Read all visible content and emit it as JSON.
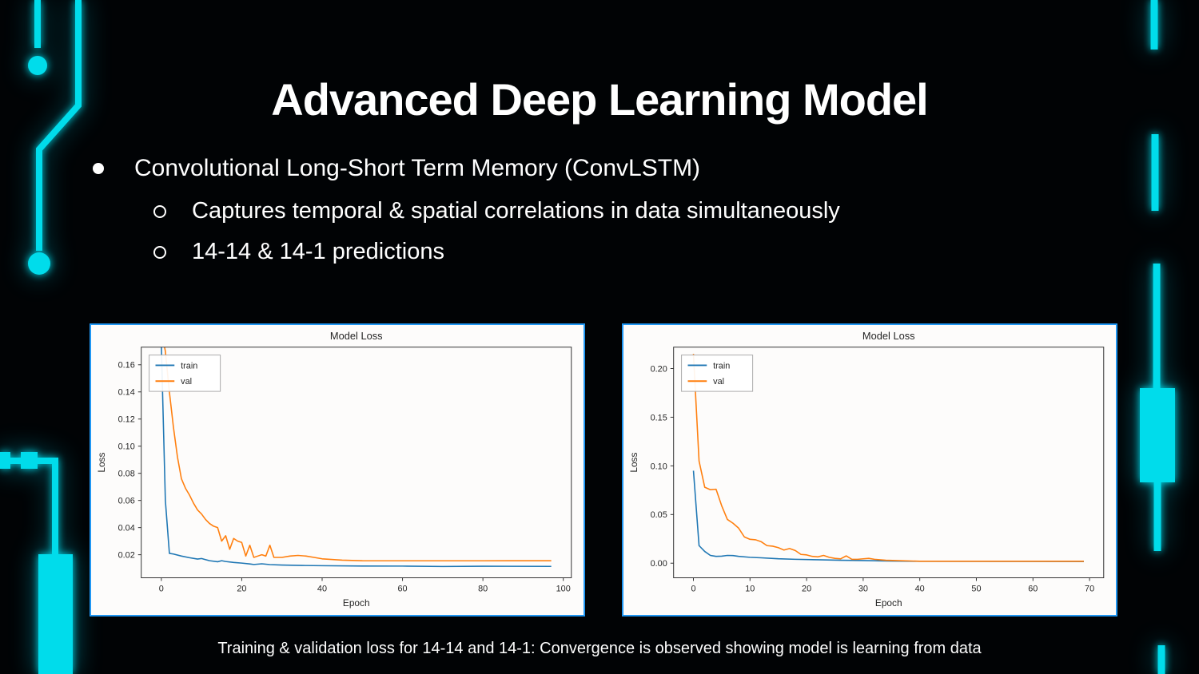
{
  "slide": {
    "title": "Advanced Deep Learning Model",
    "bullets": {
      "level1": "Convolutional Long-Short Term Memory (ConvLSTM)",
      "sub1": "Captures temporal & spatial correlations in data simultaneously",
      "sub2": "14-14 & 14-1 predictions"
    },
    "caption": "Training & validation loss for 14-14 and 14-1: Convergence is observed showing model is learning from data"
  },
  "colors": {
    "background": "#010305",
    "accent_cyan": "#00dceb",
    "panel_border": "#2097f3",
    "train_line": "#1f77b4",
    "val_line": "#ff7f0e",
    "chart_text": "#262626"
  },
  "chart_data": [
    {
      "type": "line",
      "name": "loss-14-14",
      "title": "Model Loss",
      "xlabel": "Epoch",
      "ylabel": "Loss",
      "xlim": [
        -5,
        102
      ],
      "ylim": [
        0.003,
        0.173
      ],
      "xticks": [
        0,
        20,
        40,
        60,
        80,
        100
      ],
      "yticks": [
        0.02,
        0.04,
        0.06,
        0.08,
        0.1,
        0.12,
        0.14,
        0.16
      ],
      "ytick_labels": [
        "0.02",
        "0.04",
        "0.06",
        "0.08",
        "0.10",
        "0.12",
        "0.14",
        "0.16"
      ],
      "grid": false,
      "legend_position": "upper left",
      "series": [
        {
          "name": "train",
          "color": "#1f77b4",
          "points": [
            [
              0,
              0.175
            ],
            [
              1,
              0.06
            ],
            [
              2,
              0.021
            ],
            [
              3,
              0.0205
            ],
            [
              5,
              0.019
            ],
            [
              7,
              0.0178
            ],
            [
              9,
              0.0168
            ],
            [
              10,
              0.0172
            ],
            [
              12,
              0.0156
            ],
            [
              14,
              0.0148
            ],
            [
              15,
              0.0156
            ],
            [
              16,
              0.015
            ],
            [
              18,
              0.0143
            ],
            [
              20,
              0.0138
            ],
            [
              22,
              0.0132
            ],
            [
              23,
              0.0128
            ],
            [
              25,
              0.0133
            ],
            [
              27,
              0.0127
            ],
            [
              30,
              0.0124
            ],
            [
              35,
              0.0121
            ],
            [
              40,
              0.0119
            ],
            [
              50,
              0.0117
            ],
            [
              60,
              0.0116
            ],
            [
              70,
              0.0113
            ],
            [
              80,
              0.0115
            ],
            [
              97,
              0.0114
            ]
          ]
        },
        {
          "name": "val",
          "color": "#ff7f0e",
          "points": [
            [
              0,
              0.185
            ],
            [
              1,
              0.17
            ],
            [
              2,
              0.14
            ],
            [
              3,
              0.114
            ],
            [
              4,
              0.092
            ],
            [
              5,
              0.076
            ],
            [
              6,
              0.069
            ],
            [
              7,
              0.064
            ],
            [
              8,
              0.058
            ],
            [
              9,
              0.053
            ],
            [
              10,
              0.05
            ],
            [
              11,
              0.046
            ],
            [
              12,
              0.043
            ],
            [
              13,
              0.041
            ],
            [
              14,
              0.04
            ],
            [
              15,
              0.03
            ],
            [
              16,
              0.034
            ],
            [
              17,
              0.024
            ],
            [
              18,
              0.032
            ],
            [
              19,
              0.03
            ],
            [
              20,
              0.029
            ],
            [
              21,
              0.019
            ],
            [
              22,
              0.027
            ],
            [
              23,
              0.018
            ],
            [
              24,
              0.019
            ],
            [
              25,
              0.02
            ],
            [
              26,
              0.019
            ],
            [
              27,
              0.027
            ],
            [
              28,
              0.018
            ],
            [
              30,
              0.018
            ],
            [
              32,
              0.019
            ],
            [
              34,
              0.0195
            ],
            [
              36,
              0.019
            ],
            [
              38,
              0.018
            ],
            [
              40,
              0.017
            ],
            [
              45,
              0.016
            ],
            [
              50,
              0.0156
            ],
            [
              60,
              0.0155
            ],
            [
              80,
              0.0155
            ],
            [
              97,
              0.0156
            ]
          ]
        }
      ]
    },
    {
      "type": "line",
      "name": "loss-14-1",
      "title": "Model Loss",
      "xlabel": "Epoch",
      "ylabel": "Loss",
      "xlim": [
        -3.5,
        72.5
      ],
      "ylim": [
        -0.015,
        0.222
      ],
      "xticks": [
        0,
        10,
        20,
        30,
        40,
        50,
        60,
        70
      ],
      "yticks": [
        0.0,
        0.05,
        0.1,
        0.15,
        0.2
      ],
      "ytick_labels": [
        "0.00",
        "0.05",
        "0.10",
        "0.15",
        "0.20"
      ],
      "grid": false,
      "legend_position": "upper left",
      "series": [
        {
          "name": "train",
          "color": "#1f77b4",
          "points": [
            [
              0,
              0.095
            ],
            [
              1,
              0.018
            ],
            [
              2,
              0.012
            ],
            [
              3,
              0.008
            ],
            [
              4,
              0.007
            ],
            [
              5,
              0.0072
            ],
            [
              6,
              0.008
            ],
            [
              7,
              0.0078
            ],
            [
              8,
              0.007
            ],
            [
              10,
              0.006
            ],
            [
              12,
              0.0055
            ],
            [
              15,
              0.0046
            ],
            [
              18,
              0.004
            ],
            [
              22,
              0.0035
            ],
            [
              26,
              0.003
            ],
            [
              30,
              0.0027
            ],
            [
              35,
              0.0022
            ],
            [
              40,
              0.002
            ],
            [
              55,
              0.0019
            ],
            [
              69,
              0.0018
            ]
          ]
        },
        {
          "name": "val",
          "color": "#ff7f0e",
          "points": [
            [
              0,
              0.215
            ],
            [
              1,
              0.105
            ],
            [
              2,
              0.078
            ],
            [
              3,
              0.0755
            ],
            [
              4,
              0.076
            ],
            [
              5,
              0.059
            ],
            [
              6,
              0.045
            ],
            [
              7,
              0.041
            ],
            [
              8,
              0.036
            ],
            [
              9,
              0.027
            ],
            [
              10,
              0.0245
            ],
            [
              11,
              0.024
            ],
            [
              12,
              0.022
            ],
            [
              13,
              0.018
            ],
            [
              14,
              0.0175
            ],
            [
              15,
              0.016
            ],
            [
              16,
              0.0135
            ],
            [
              17,
              0.015
            ],
            [
              18,
              0.013
            ],
            [
              19,
              0.009
            ],
            [
              20,
              0.0085
            ],
            [
              21,
              0.007
            ],
            [
              22,
              0.0065
            ],
            [
              23,
              0.008
            ],
            [
              24,
              0.006
            ],
            [
              25,
              0.005
            ],
            [
              26,
              0.0045
            ],
            [
              27,
              0.0075
            ],
            [
              28,
              0.004
            ],
            [
              29,
              0.004
            ],
            [
              30,
              0.0045
            ],
            [
              31,
              0.005
            ],
            [
              32,
              0.004
            ],
            [
              34,
              0.003
            ],
            [
              37,
              0.0025
            ],
            [
              40,
              0.002
            ],
            [
              55,
              0.002
            ],
            [
              69,
              0.002
            ]
          ]
        }
      ]
    }
  ]
}
